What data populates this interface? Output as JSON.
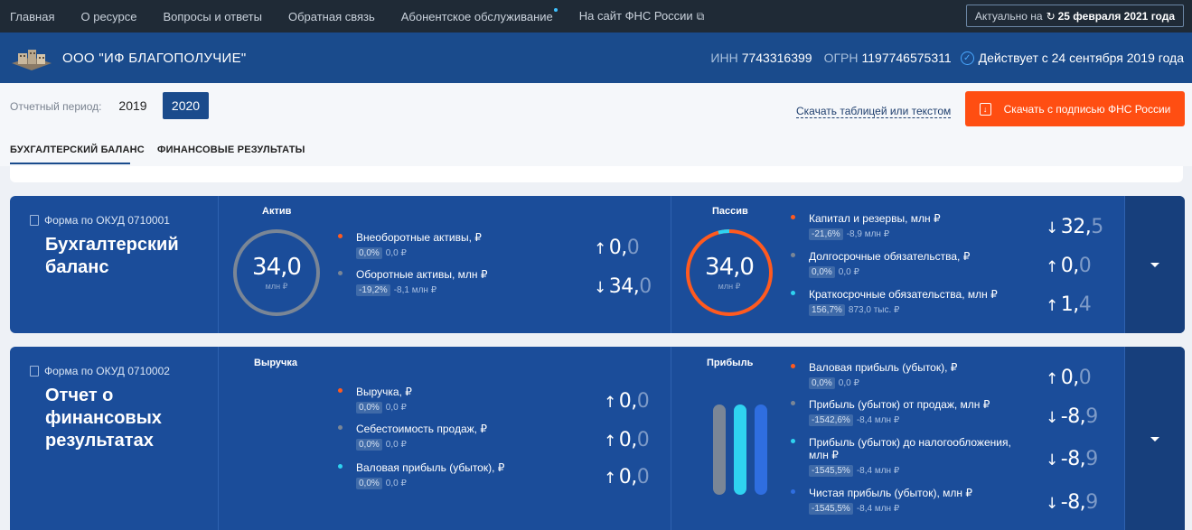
{
  "topnav": {
    "items": [
      "Главная",
      "О ресурсе",
      "Вопросы и ответы",
      "Обратная связь",
      "Абонентское обслуживание",
      "На сайт ФНС России"
    ],
    "actual_label": "Актуально на",
    "actual_date": "25 февраля 2021 года"
  },
  "company": {
    "name": "ООО \"ИФ БЛАГОПОЛУЧИЕ\"",
    "inn_label": "ИНН",
    "inn": "7743316399",
    "ogrn_label": "ОГРН",
    "ogrn": "1197746575311",
    "since": "Действует с 24 сентября 2019 года"
  },
  "controls": {
    "period_label": "Отчетный период:",
    "years": [
      "2019",
      "2020"
    ],
    "selected_year": "2020",
    "download_link": "Скачать таблицей или текстом",
    "download_button": "Скачать с подписью ФНС России",
    "tabs": [
      "БУХГАЛТЕРСКИЙ БАЛАНС",
      "ФИНАНСОВЫЕ РЕЗУЛЬТАТЫ"
    ]
  },
  "colors": {
    "orange": "#ff5a1f",
    "gray": "#7a8696",
    "cyan": "#2fd3f0",
    "blue": "#2f6ee0"
  },
  "balance": {
    "form": "Форма по ОКУД 0710001",
    "title_line1": "Бухгалтерский",
    "title_line2": "баланс",
    "active": {
      "title": "Актив",
      "total": "34,0",
      "unit": "млн ₽",
      "items": [
        {
          "name": "Внеоборотные активы, ₽",
          "pct": "0,0%",
          "delta": "0,0 ₽",
          "arrow": "↑",
          "value_int": "0,",
          "value_dec": "0"
        },
        {
          "name": "Оборотные активы, млн ₽",
          "pct": "-19,2%",
          "delta": "-8,1 млн ₽",
          "arrow": "↓",
          "value_int": "34,",
          "value_dec": "0"
        }
      ]
    },
    "passive": {
      "title": "Пассив",
      "total": "34,0",
      "unit": "млн ₽",
      "items": [
        {
          "name": "Капитал и резервы, млн ₽",
          "pct": "-21,6%",
          "delta": "-8,9 млн ₽",
          "arrow": "↓",
          "value_int": "32,",
          "value_dec": "5"
        },
        {
          "name": "Долгосрочные обязательства, ₽",
          "pct": "0,0%",
          "delta": "0,0 ₽",
          "arrow": "↑",
          "value_int": "0,",
          "value_dec": "0"
        },
        {
          "name": "Краткосрочные обязательства, млн ₽",
          "pct": "156,7%",
          "delta": "873,0 тыс. ₽",
          "arrow": "↑",
          "value_int": "1,",
          "value_dec": "4"
        }
      ]
    }
  },
  "results": {
    "form": "Форма по ОКУД 0710002",
    "title_line1": "Отчет о",
    "title_line2": "финансовых",
    "title_line3": "результатах",
    "revenue": {
      "title": "Выручка",
      "items": [
        {
          "name": "Выручка, ₽",
          "pct": "0,0%",
          "delta": "0,0 ₽",
          "arrow": "↑",
          "value_int": "0,",
          "value_dec": "0"
        },
        {
          "name": "Себестоимость продаж, ₽",
          "pct": "0,0%",
          "delta": "0,0 ₽",
          "arrow": "↑",
          "value_int": "0,",
          "value_dec": "0"
        },
        {
          "name": "Валовая прибыль (убыток), ₽",
          "pct": "0,0%",
          "delta": "0,0 ₽",
          "arrow": "↑",
          "value_int": "0,",
          "value_dec": "0"
        }
      ]
    },
    "profit": {
      "title": "Прибыль",
      "items": [
        {
          "name": "Валовая прибыль (убыток), ₽",
          "pct": "0,0%",
          "delta": "0,0 ₽",
          "arrow": "↑",
          "value_int": "0,",
          "value_dec": "0"
        },
        {
          "name": "Прибыль (убыток) от продаж, млн ₽",
          "pct": "-1542,6%",
          "delta": "-8,4 млн ₽",
          "arrow": "↓",
          "value_int": "-8,",
          "value_dec": "9"
        },
        {
          "name": "Прибыль (убыток) до налогообложения,",
          "name2": "млн ₽",
          "pct": "-1545,5%",
          "delta": "-8,4 млн ₽",
          "arrow": "↓",
          "value_int": "-8,",
          "value_dec": "9"
        },
        {
          "name": "Чистая прибыль (убыток), млн ₽",
          "pct": "-1545,5%",
          "delta": "-8,4 млн ₽",
          "arrow": "↓",
          "value_int": "-8,",
          "value_dec": "9"
        }
      ]
    }
  }
}
